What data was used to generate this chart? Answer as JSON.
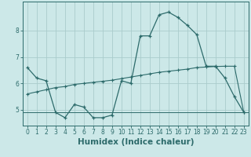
{
  "xlabel": "Humidex (Indice chaleur)",
  "background_color": "#cce8e8",
  "line_color": "#2d6b6b",
  "grid_color": "#aacccc",
  "x_values": [
    0,
    1,
    2,
    3,
    4,
    5,
    6,
    7,
    8,
    9,
    10,
    11,
    12,
    13,
    14,
    15,
    16,
    17,
    18,
    19,
    20,
    21,
    22,
    23
  ],
  "y_curve1": [
    6.6,
    6.2,
    6.1,
    4.9,
    4.7,
    5.2,
    5.1,
    4.7,
    4.7,
    4.8,
    6.1,
    6.0,
    7.8,
    7.8,
    8.6,
    8.7,
    8.5,
    8.2,
    7.85,
    6.65,
    6.65,
    6.2,
    5.5,
    4.9
  ],
  "y_line2": [
    5.6,
    5.68,
    5.76,
    5.84,
    5.88,
    5.96,
    6.0,
    6.04,
    6.08,
    6.12,
    6.18,
    6.24,
    6.3,
    6.36,
    6.42,
    6.46,
    6.5,
    6.54,
    6.6,
    6.62,
    6.64,
    6.65,
    6.65,
    4.9
  ],
  "y_hline": 4.9,
  "ylim": [
    4.4,
    9.1
  ],
  "yticks": [
    5,
    6,
    7,
    8
  ],
  "xticks": [
    0,
    1,
    2,
    3,
    4,
    5,
    6,
    7,
    8,
    9,
    10,
    11,
    12,
    13,
    14,
    15,
    16,
    17,
    18,
    19,
    20,
    21,
    22,
    23
  ],
  "tick_fontsize": 5.5,
  "xlabel_fontsize": 7.5
}
